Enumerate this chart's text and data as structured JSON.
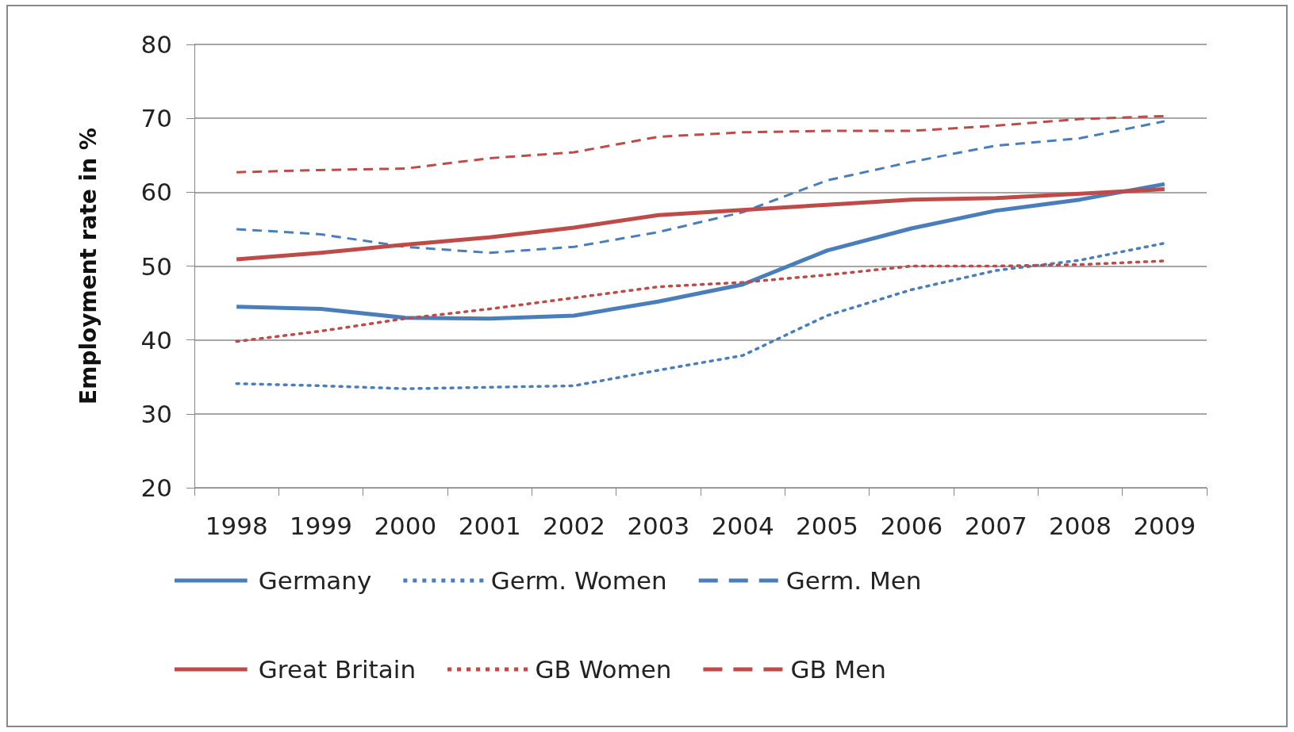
{
  "chart_data": {
    "type": "line",
    "ylabel": "Employment rate in %",
    "categories": [
      "1998",
      "1999",
      "2000",
      "2001",
      "2002",
      "2003",
      "2004",
      "2005",
      "2006",
      "2007",
      "2008",
      "2009"
    ],
    "ylim": [
      20,
      80
    ],
    "yticks": [
      20,
      30,
      40,
      50,
      60,
      70,
      80
    ],
    "grid": "y",
    "legend": "bottom",
    "marker": "none",
    "series": [
      {
        "name": "Germany",
        "color": "#4a7ebb",
        "line_style": "solid",
        "values": [
          44.5,
          44.2,
          43,
          42.9,
          43.3,
          45.2,
          47.5,
          52.1,
          55.1,
          57.5,
          59,
          61.1
        ]
      },
      {
        "name": "Germ. Women",
        "color": "#4a7ebb",
        "line_style": "dotted",
        "values": [
          34.1,
          33.8,
          33.4,
          33.6,
          33.8,
          35.9,
          37.9,
          43.3,
          46.8,
          49.4,
          50.8,
          53.1
        ]
      },
      {
        "name": "Germ. Men",
        "color": "#4a7ebb",
        "line_style": "dashed",
        "values": [
          55,
          54.3,
          52.6,
          51.8,
          52.6,
          54.6,
          57.3,
          61.6,
          64.1,
          66.3,
          67.3,
          69.6
        ]
      },
      {
        "name": "Great Britain",
        "color": "#be4b48",
        "line_style": "solid",
        "values": [
          50.9,
          51.8,
          52.9,
          53.9,
          55.2,
          56.9,
          57.6,
          58.3,
          59,
          59.2,
          59.8,
          60.4
        ]
      },
      {
        "name": "GB Women",
        "color": "#be4b48",
        "line_style": "dotted",
        "values": [
          39.8,
          41.2,
          42.9,
          44.2,
          45.7,
          47.2,
          47.8,
          48.8,
          50,
          50,
          50.2,
          50.7
        ]
      },
      {
        "name": "GB Men",
        "color": "#be4b48",
        "line_style": "dashed",
        "values": [
          62.7,
          63,
          63.2,
          64.6,
          65.4,
          67.5,
          68.1,
          68.3,
          68.3,
          69,
          69.9,
          70.3
        ]
      }
    ]
  }
}
